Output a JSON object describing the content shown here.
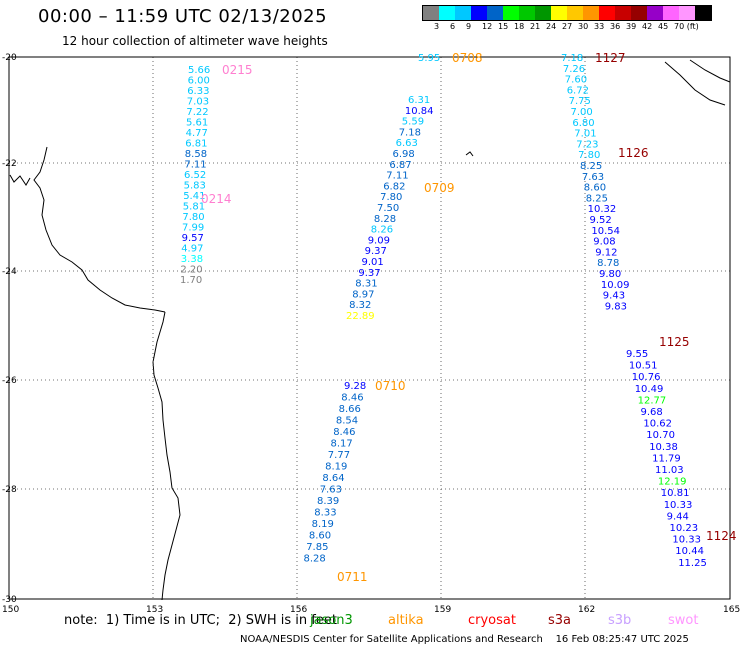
{
  "header": {
    "title": "00:00 – 11:59 UTC 02/13/2025",
    "subtitle": "12 hour collection of altimeter wave heights"
  },
  "colorbar": {
    "colors": [
      "#808080",
      "#00ffff",
      "#00c8ff",
      "#0000ff",
      "#0064c8",
      "#00ff00",
      "#00c800",
      "#009600",
      "#ffff00",
      "#ffc800",
      "#ff9600",
      "#ff0000",
      "#c80000",
      "#960000",
      "#9600c8",
      "#ff64ff",
      "#ff96ff",
      "#000000"
    ],
    "labels": [
      "3",
      "6",
      "9",
      "12",
      "15",
      "18",
      "21",
      "24",
      "27",
      "30",
      "33",
      "36",
      "39",
      "42",
      "45",
      "70 (ft)"
    ]
  },
  "map": {
    "lat_labels": [
      "-20",
      "-22",
      "-24",
      "-26",
      "-28",
      "-30"
    ],
    "lon_labels": [
      "150",
      "153",
      "156",
      "159",
      "162",
      "165"
    ],
    "tracks": [
      {
        "name": "track-0215",
        "time": "0215",
        "time_color": "#ff7fd0",
        "obs": [
          [
            "5.66",
            "#00c8ff"
          ],
          [
            "6.00",
            "#00c8ff"
          ],
          [
            "6.33",
            "#00c8ff"
          ],
          [
            "7.03",
            "#00c8ff"
          ],
          [
            "7.22",
            "#00c8ff"
          ],
          [
            "5.61",
            "#00c8ff"
          ],
          [
            "4.77",
            "#00c8ff"
          ],
          [
            "6.81",
            "#00c8ff"
          ],
          [
            "8.58",
            "#0064c8"
          ],
          [
            "7.11",
            "#0064c8"
          ],
          [
            "6.52",
            "#00c8ff"
          ],
          [
            "5.83",
            "#00c8ff"
          ],
          [
            "5.41",
            "#00c8ff"
          ],
          [
            "5.81",
            "#00c8ff"
          ],
          [
            "7.80",
            "#00c8ff"
          ],
          [
            "7.99",
            "#00c8ff"
          ],
          [
            "9.57",
            "#0000ff"
          ],
          [
            "4.97",
            "#00c8ff"
          ],
          [
            "3.38",
            "#00ffff"
          ],
          [
            "2.20",
            "#808080"
          ],
          [
            "1.70",
            "#808080"
          ]
        ]
      },
      {
        "name": "track-0214",
        "time": "0214",
        "time_color": "#ff7fd0",
        "obs": []
      },
      {
        "name": "track-0708",
        "time": "0708",
        "time_color": "#ff9600",
        "obs": [
          [
            "5.95",
            "#00c8ff"
          ]
        ]
      },
      {
        "name": "track-0709",
        "time": "0709",
        "time_color": "#ff9600",
        "obs": [
          [
            "6.31",
            "#00c8ff"
          ],
          [
            "10.84",
            "#0000ff"
          ],
          [
            "5.59",
            "#00c8ff"
          ],
          [
            "7.18",
            "#0064c8"
          ],
          [
            "6.63",
            "#00c8ff"
          ],
          [
            "6.98",
            "#0064c8"
          ],
          [
            "6.87",
            "#0064c8"
          ],
          [
            "7.11",
            "#0064c8"
          ],
          [
            "6.82",
            "#0064c8"
          ],
          [
            "7.80",
            "#0064c8"
          ],
          [
            "7.50",
            "#0064c8"
          ],
          [
            "8.28",
            "#0064c8"
          ],
          [
            "8.26",
            "#00c8ff"
          ],
          [
            "9.09",
            "#0000ff"
          ],
          [
            "9.37",
            "#0000ff"
          ],
          [
            "9.01",
            "#0000ff"
          ],
          [
            "9.37",
            "#0000ff"
          ],
          [
            "8.31",
            "#0064c8"
          ],
          [
            "8.97",
            "#0064c8"
          ],
          [
            "8.32",
            "#0064c8"
          ],
          [
            "22.89",
            "#ffff00"
          ]
        ]
      },
      {
        "name": "track-0710",
        "time": "0710",
        "time_color": "#ff9600",
        "obs": [
          [
            "9.28",
            "#0000ff"
          ],
          [
            "8.46",
            "#0064c8"
          ],
          [
            "8.66",
            "#0064c8"
          ],
          [
            "8.54",
            "#0064c8"
          ],
          [
            "8.46",
            "#0064c8"
          ],
          [
            "8.17",
            "#0064c8"
          ],
          [
            "7.77",
            "#0064c8"
          ],
          [
            "8.19",
            "#0064c8"
          ],
          [
            "8.64",
            "#0064c8"
          ],
          [
            "7.63",
            "#0064c8"
          ],
          [
            "8.39",
            "#0064c8"
          ],
          [
            "8.33",
            "#0064c8"
          ],
          [
            "8.19",
            "#0064c8"
          ],
          [
            "8.60",
            "#0064c8"
          ],
          [
            "7.85",
            "#0064c8"
          ],
          [
            "8.28",
            "#0064c8"
          ]
        ]
      },
      {
        "name": "track-0711",
        "time": "0711",
        "time_color": "#ff9600",
        "obs": []
      },
      {
        "name": "track-1127",
        "time": "1127",
        "time_color": "#960000",
        "obs": [
          [
            "7.18",
            "#00c8ff"
          ],
          [
            "7.26",
            "#00c8ff"
          ],
          [
            "7.60",
            "#00c8ff"
          ],
          [
            "6.72",
            "#00c8ff"
          ],
          [
            "7.75",
            "#00c8ff"
          ],
          [
            "7.00",
            "#00c8ff"
          ],
          [
            "6.80",
            "#00c8ff"
          ],
          [
            "7.01",
            "#00c8ff"
          ],
          [
            "7.23",
            "#00c8ff"
          ],
          [
            "7.80",
            "#00c8ff"
          ],
          [
            "8.25",
            "#0064c8"
          ],
          [
            "7.63",
            "#0064c8"
          ],
          [
            "8.60",
            "#0064c8"
          ],
          [
            "8.25",
            "#0064c8"
          ],
          [
            "10.32",
            "#0000ff"
          ],
          [
            "9.52",
            "#0000ff"
          ],
          [
            "10.54",
            "#0000ff"
          ],
          [
            "9.08",
            "#0000ff"
          ],
          [
            "9.12",
            "#0000ff"
          ],
          [
            "8.78",
            "#0064c8"
          ],
          [
            "9.80",
            "#0000ff"
          ],
          [
            "10.09",
            "#0000ff"
          ],
          [
            "9.43",
            "#0000ff"
          ],
          [
            "9.83",
            "#0000ff"
          ]
        ]
      },
      {
        "name": "track-1126",
        "time": "1126",
        "time_color": "#960000",
        "obs": []
      },
      {
        "name": "track-1125",
        "time": "1125",
        "time_color": "#960000",
        "obs": [
          [
            "9.55",
            "#0000ff"
          ],
          [
            "10.51",
            "#0000ff"
          ],
          [
            "10.76",
            "#0000ff"
          ],
          [
            "10.49",
            "#0000ff"
          ],
          [
            "12.77",
            "#00ff00"
          ],
          [
            "9.68",
            "#0000ff"
          ],
          [
            "10.62",
            "#0000ff"
          ],
          [
            "10.70",
            "#0000ff"
          ],
          [
            "10.38",
            "#0000ff"
          ],
          [
            "11.79",
            "#0000ff"
          ],
          [
            "11.03",
            "#0000ff"
          ],
          [
            "12.19",
            "#00ff00"
          ],
          [
            "10.81",
            "#0000ff"
          ],
          [
            "10.33",
            "#0000ff"
          ],
          [
            "9.44",
            "#0000ff"
          ],
          [
            "10.23",
            "#0000ff"
          ],
          [
            "10.33",
            "#0000ff"
          ],
          [
            "10.44",
            "#0000ff"
          ],
          [
            "11.25",
            "#0000ff"
          ]
        ]
      },
      {
        "name": "track-1124",
        "time": "1124",
        "time_color": "#960000",
        "obs": []
      }
    ]
  },
  "note": "note:  1) Time is in UTC;  2) SWH is in feet",
  "legend": [
    {
      "label": "jason3",
      "color": "#009600"
    },
    {
      "label": "altika",
      "color": "#ff9600"
    },
    {
      "label": "cryosat",
      "color": "#ff0000"
    },
    {
      "label": "s3a",
      "color": "#960000"
    },
    {
      "label": "s3b",
      "color": "#c8a0ff"
    },
    {
      "label": "swot",
      "color": "#ff96ff"
    }
  ],
  "footer": "NOAA/NESDIS Center for Satellite Applications and Research    16 Feb 08:25:47 UTC 2025"
}
